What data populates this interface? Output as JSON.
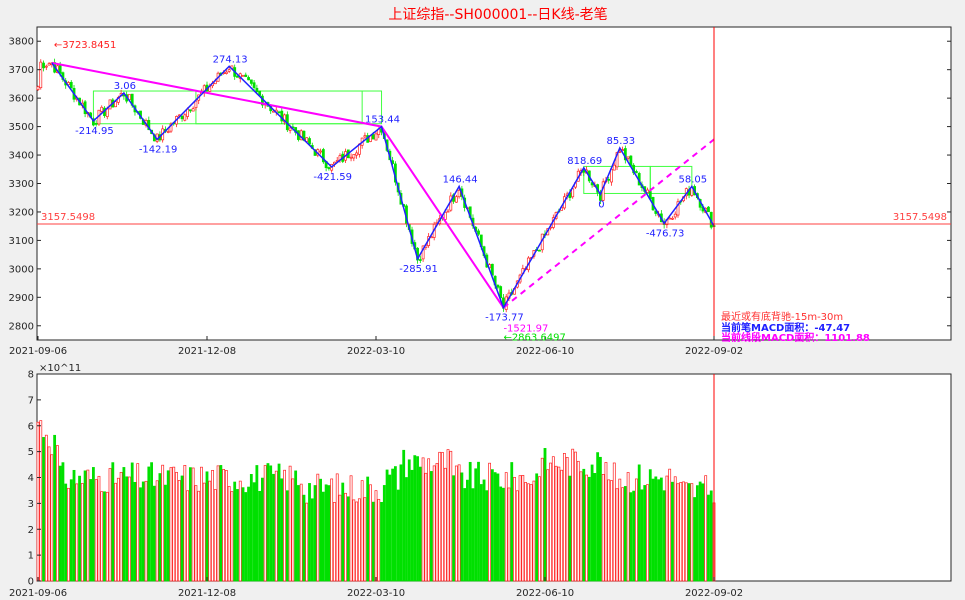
{
  "title": "上证综指--SH000001--日K线-老笔",
  "colors": {
    "up": "#ff2020",
    "down": "#00e000",
    "bi": "#2020ff",
    "segment": "#ff00ff",
    "zhongshu": "#40ff40",
    "cursor": "#ff0000",
    "hline": "#ff4040"
  },
  "chart_data": [
    {
      "type": "candlestick",
      "name": "price-panel",
      "ylim": [
        2750,
        3850
      ],
      "yticks": [
        2800,
        2900,
        3000,
        3100,
        3200,
        3300,
        3400,
        3500,
        3600,
        3700,
        3800
      ],
      "xticks": [
        "2021-09-06",
        "2021-12-08",
        "2022-03-10",
        "2022-06-10",
        "2022-09-02"
      ],
      "bar_count": 245,
      "horizontal_line": {
        "value": 3157.5498,
        "label_left": "3157.5498",
        "label_right": "3157.5498"
      },
      "top_marker": "←3723.8451",
      "bi_points": [
        {
          "i": 5,
          "y": 3723.8,
          "label": ""
        },
        {
          "i": 20,
          "y": 3520,
          "label": "-214.95"
        },
        {
          "i": 31,
          "y": 3618,
          "label": "3.06"
        },
        {
          "i": 43,
          "y": 3455,
          "label": "-142.19"
        },
        {
          "i": 69,
          "y": 3712,
          "label": "274.13"
        },
        {
          "i": 106,
          "y": 3358,
          "label": "-421.59"
        },
        {
          "i": 124,
          "y": 3500,
          "label": "153.44"
        },
        {
          "i": 137,
          "y": 3035,
          "label": "-285.91"
        },
        {
          "i": 152,
          "y": 3290,
          "label": "146.44"
        },
        {
          "i": 168,
          "y": 2863.6,
          "label": "-173.77"
        },
        {
          "i": 197,
          "y": 3355,
          "label": "818.69"
        },
        {
          "i": 203,
          "y": 3262,
          "label": "0"
        },
        {
          "i": 210,
          "y": 3425,
          "label": "85.33"
        },
        {
          "i": 226,
          "y": 3160,
          "label": "-476.73"
        },
        {
          "i": 236,
          "y": 3290,
          "label": "58.05"
        },
        {
          "i": 244,
          "y": 3150,
          "label": ""
        }
      ],
      "segment": [
        {
          "i": 5,
          "y": 3723.8
        },
        {
          "i": 124,
          "y": 3500
        },
        {
          "i": 168,
          "y": 2863.6
        }
      ],
      "segment_projection": [
        {
          "i": 168,
          "y": 2863.6
        },
        {
          "i": 244,
          "y": 3455
        }
      ],
      "zhongshu": [
        {
          "i0": 20,
          "i1": 117,
          "y0": 3510,
          "y1": 3625
        },
        {
          "i0": 57,
          "i1": 124,
          "y0": 3510,
          "y1": 3625
        },
        {
          "i0": 197,
          "i1": 221,
          "y0": 3265,
          "y1": 3360
        },
        {
          "i0": 221,
          "i1": 236,
          "y0": 3265,
          "y1": 3360
        }
      ],
      "labels_extra": [
        "-1521.97",
        "←2863.6497"
      ],
      "notes": [
        {
          "text": "最近或有底背驰-15m-30m",
          "color": "#ff3030"
        },
        {
          "text": "当前笔MACD面积：-47.47",
          "color": "#2020ff"
        },
        {
          "text": "当前线段MACD面积：1101.88",
          "color": "#ff00ff"
        }
      ]
    },
    {
      "type": "bar",
      "name": "volume-panel",
      "ylim": [
        0,
        8
      ],
      "yticks": [
        0,
        1,
        2,
        3,
        4,
        5,
        6,
        7,
        8
      ],
      "y_exponent": "×10^11",
      "xticks": [
        "2021-09-06",
        "2021-12-08",
        "2022-03-10",
        "2022-06-10",
        "2022-09-02"
      ]
    }
  ]
}
